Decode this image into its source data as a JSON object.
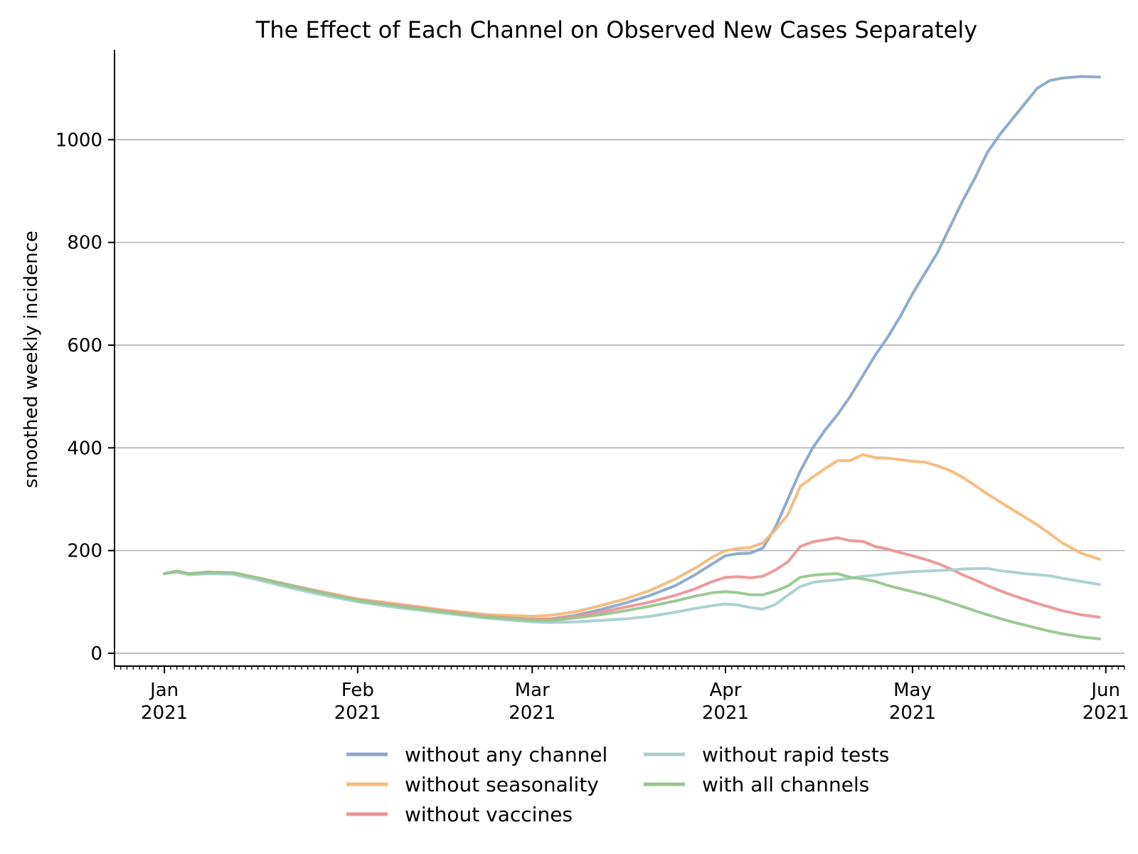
{
  "chart_data": {
    "type": "line",
    "title": "The Effect of Each Channel on Observed New Cases Separately",
    "xlabel": "",
    "ylabel": "smoothed weekly incidence",
    "ylim": [
      -25,
      1175
    ],
    "xlim": [
      "2020-12-24",
      "2021-06-04"
    ],
    "grid": "y-major",
    "legend": "below the chart, two columns",
    "x_ticks": [
      {
        "date": "2021-01-01",
        "month": "Jan",
        "year": "2021"
      },
      {
        "date": "2021-02-01",
        "month": "Feb",
        "year": "2021"
      },
      {
        "date": "2021-03-01",
        "month": "Mar",
        "year": "2021"
      },
      {
        "date": "2021-04-01",
        "month": "Apr",
        "year": "2021"
      },
      {
        "date": "2021-05-01",
        "month": "May",
        "year": "2021"
      },
      {
        "date": "2021-06-01",
        "month": "Jun",
        "year": "2021"
      }
    ],
    "y_ticks": [
      0,
      200,
      400,
      600,
      800,
      1000
    ],
    "series": [
      {
        "name": "without any channel",
        "color": "#8aa6c9",
        "points": [
          [
            "2021-01-01",
            155
          ],
          [
            "2021-01-03",
            160
          ],
          [
            "2021-01-05",
            153
          ],
          [
            "2021-01-08",
            157
          ],
          [
            "2021-01-12",
            155
          ],
          [
            "2021-01-16",
            145
          ],
          [
            "2021-01-20",
            133
          ],
          [
            "2021-01-25",
            120
          ],
          [
            "2021-02-01",
            104
          ],
          [
            "2021-02-08",
            92
          ],
          [
            "2021-02-15",
            81
          ],
          [
            "2021-02-22",
            71
          ],
          [
            "2021-03-01",
            66
          ],
          [
            "2021-03-04",
            67
          ],
          [
            "2021-03-08",
            74
          ],
          [
            "2021-03-12",
            85
          ],
          [
            "2021-03-16",
            98
          ],
          [
            "2021-03-20",
            113
          ],
          [
            "2021-03-24",
            132
          ],
          [
            "2021-03-27",
            152
          ],
          [
            "2021-03-30",
            175
          ],
          [
            "2021-04-01",
            190
          ],
          [
            "2021-04-03",
            194
          ],
          [
            "2021-04-05",
            195
          ],
          [
            "2021-04-07",
            205
          ],
          [
            "2021-04-09",
            245
          ],
          [
            "2021-04-11",
            300
          ],
          [
            "2021-04-13",
            355
          ],
          [
            "2021-04-15",
            400
          ],
          [
            "2021-04-17",
            435
          ],
          [
            "2021-04-19",
            465
          ],
          [
            "2021-04-21",
            500
          ],
          [
            "2021-04-23",
            540
          ],
          [
            "2021-04-25",
            580
          ],
          [
            "2021-04-27",
            615
          ],
          [
            "2021-04-29",
            655
          ],
          [
            "2021-05-01",
            700
          ],
          [
            "2021-05-03",
            740
          ],
          [
            "2021-05-05",
            780
          ],
          [
            "2021-05-07",
            830
          ],
          [
            "2021-05-09",
            880
          ],
          [
            "2021-05-11",
            925
          ],
          [
            "2021-05-13",
            975
          ],
          [
            "2021-05-15",
            1010
          ],
          [
            "2021-05-17",
            1040
          ],
          [
            "2021-05-19",
            1070
          ],
          [
            "2021-05-21",
            1100
          ],
          [
            "2021-05-23",
            1115
          ],
          [
            "2021-05-25",
            1120
          ],
          [
            "2021-05-28",
            1123
          ],
          [
            "2021-05-31",
            1122
          ]
        ]
      },
      {
        "name": "without seasonality",
        "color": "#f5b97a",
        "points": [
          [
            "2021-01-01",
            155
          ],
          [
            "2021-01-03",
            160
          ],
          [
            "2021-01-05",
            155
          ],
          [
            "2021-01-08",
            158
          ],
          [
            "2021-01-12",
            157
          ],
          [
            "2021-01-16",
            147
          ],
          [
            "2021-01-20",
            136
          ],
          [
            "2021-01-25",
            123
          ],
          [
            "2021-02-01",
            106
          ],
          [
            "2021-02-08",
            95
          ],
          [
            "2021-02-15",
            84
          ],
          [
            "2021-02-22",
            75
          ],
          [
            "2021-03-01",
            72
          ],
          [
            "2021-03-04",
            74
          ],
          [
            "2021-03-08",
            81
          ],
          [
            "2021-03-12",
            93
          ],
          [
            "2021-03-16",
            106
          ],
          [
            "2021-03-20",
            123
          ],
          [
            "2021-03-24",
            145
          ],
          [
            "2021-03-27",
            165
          ],
          [
            "2021-03-30",
            188
          ],
          [
            "2021-04-01",
            200
          ],
          [
            "2021-04-03",
            204
          ],
          [
            "2021-04-05",
            206
          ],
          [
            "2021-04-07",
            215
          ],
          [
            "2021-04-09",
            240
          ],
          [
            "2021-04-11",
            270
          ],
          [
            "2021-04-13",
            325
          ],
          [
            "2021-04-15",
            343
          ],
          [
            "2021-04-17",
            360
          ],
          [
            "2021-04-19",
            375
          ],
          [
            "2021-04-21",
            375
          ],
          [
            "2021-04-23",
            387
          ],
          [
            "2021-04-25",
            381
          ],
          [
            "2021-04-27",
            380
          ],
          [
            "2021-04-29",
            377
          ],
          [
            "2021-05-01",
            374
          ],
          [
            "2021-05-03",
            372
          ],
          [
            "2021-05-05",
            365
          ],
          [
            "2021-05-07",
            356
          ],
          [
            "2021-05-09",
            343
          ],
          [
            "2021-05-11",
            327
          ],
          [
            "2021-05-13",
            310
          ],
          [
            "2021-05-15",
            295
          ],
          [
            "2021-05-17",
            280
          ],
          [
            "2021-05-19",
            265
          ],
          [
            "2021-05-21",
            250
          ],
          [
            "2021-05-23",
            233
          ],
          [
            "2021-05-25",
            215
          ],
          [
            "2021-05-28",
            195
          ],
          [
            "2021-05-31",
            183
          ]
        ]
      },
      {
        "name": "without vaccines",
        "color": "#eb9598",
        "points": [
          [
            "2021-01-01",
            155
          ],
          [
            "2021-01-03",
            160
          ],
          [
            "2021-01-05",
            155
          ],
          [
            "2021-01-08",
            158
          ],
          [
            "2021-01-12",
            157
          ],
          [
            "2021-01-16",
            147
          ],
          [
            "2021-01-20",
            136
          ],
          [
            "2021-01-25",
            122
          ],
          [
            "2021-02-01",
            104
          ],
          [
            "2021-02-08",
            93
          ],
          [
            "2021-02-15",
            82
          ],
          [
            "2021-02-22",
            72
          ],
          [
            "2021-03-01",
            66
          ],
          [
            "2021-03-04",
            67
          ],
          [
            "2021-03-08",
            72
          ],
          [
            "2021-03-12",
            80
          ],
          [
            "2021-03-16",
            90
          ],
          [
            "2021-03-20",
            100
          ],
          [
            "2021-03-24",
            113
          ],
          [
            "2021-03-27",
            125
          ],
          [
            "2021-03-30",
            140
          ],
          [
            "2021-04-01",
            148
          ],
          [
            "2021-04-03",
            149
          ],
          [
            "2021-04-05",
            147
          ],
          [
            "2021-04-07",
            150
          ],
          [
            "2021-04-09",
            162
          ],
          [
            "2021-04-11",
            178
          ],
          [
            "2021-04-13",
            208
          ],
          [
            "2021-04-15",
            217
          ],
          [
            "2021-04-17",
            221
          ],
          [
            "2021-04-19",
            225
          ],
          [
            "2021-04-21",
            219
          ],
          [
            "2021-04-23",
            218
          ],
          [
            "2021-04-25",
            208
          ],
          [
            "2021-04-27",
            203
          ],
          [
            "2021-04-29",
            196
          ],
          [
            "2021-05-01",
            190
          ],
          [
            "2021-05-03",
            183
          ],
          [
            "2021-05-05",
            175
          ],
          [
            "2021-05-07",
            165
          ],
          [
            "2021-05-09",
            153
          ],
          [
            "2021-05-11",
            143
          ],
          [
            "2021-05-13",
            132
          ],
          [
            "2021-05-15",
            122
          ],
          [
            "2021-05-17",
            113
          ],
          [
            "2021-05-19",
            105
          ],
          [
            "2021-05-21",
            97
          ],
          [
            "2021-05-23",
            90
          ],
          [
            "2021-05-25",
            83
          ],
          [
            "2021-05-28",
            75
          ],
          [
            "2021-05-31",
            70
          ]
        ]
      },
      {
        "name": "without rapid tests",
        "color": "#a8d0cc",
        "points": [
          [
            "2021-01-01",
            155
          ],
          [
            "2021-01-03",
            158
          ],
          [
            "2021-01-05",
            153
          ],
          [
            "2021-01-08",
            155
          ],
          [
            "2021-01-12",
            154
          ],
          [
            "2021-01-16",
            143
          ],
          [
            "2021-01-20",
            131
          ],
          [
            "2021-01-25",
            117
          ],
          [
            "2021-02-01",
            100
          ],
          [
            "2021-02-08",
            88
          ],
          [
            "2021-02-15",
            78
          ],
          [
            "2021-02-22",
            68
          ],
          [
            "2021-03-01",
            61
          ],
          [
            "2021-03-04",
            60
          ],
          [
            "2021-03-08",
            61
          ],
          [
            "2021-03-12",
            64
          ],
          [
            "2021-03-16",
            67
          ],
          [
            "2021-03-20",
            72
          ],
          [
            "2021-03-24",
            80
          ],
          [
            "2021-03-27",
            87
          ],
          [
            "2021-03-30",
            93
          ],
          [
            "2021-04-01",
            96
          ],
          [
            "2021-04-03",
            94
          ],
          [
            "2021-04-05",
            89
          ],
          [
            "2021-04-07",
            86
          ],
          [
            "2021-04-09",
            95
          ],
          [
            "2021-04-11",
            113
          ],
          [
            "2021-04-13",
            130
          ],
          [
            "2021-04-15",
            138
          ],
          [
            "2021-04-17",
            141
          ],
          [
            "2021-04-19",
            143
          ],
          [
            "2021-04-21",
            146
          ],
          [
            "2021-04-23",
            150
          ],
          [
            "2021-04-25",
            152
          ],
          [
            "2021-04-27",
            155
          ],
          [
            "2021-04-29",
            157
          ],
          [
            "2021-05-01",
            159
          ],
          [
            "2021-05-03",
            160
          ],
          [
            "2021-05-05",
            161
          ],
          [
            "2021-05-07",
            162
          ],
          [
            "2021-05-09",
            164
          ],
          [
            "2021-05-11",
            165
          ],
          [
            "2021-05-13",
            165
          ],
          [
            "2021-05-15",
            161
          ],
          [
            "2021-05-17",
            158
          ],
          [
            "2021-05-19",
            155
          ],
          [
            "2021-05-21",
            153
          ],
          [
            "2021-05-23",
            151
          ],
          [
            "2021-05-25",
            146
          ],
          [
            "2021-05-28",
            140
          ],
          [
            "2021-05-31",
            134
          ]
        ]
      },
      {
        "name": "with all channels",
        "color": "#97c68e",
        "points": [
          [
            "2021-01-01",
            155
          ],
          [
            "2021-01-03",
            160
          ],
          [
            "2021-01-05",
            155
          ],
          [
            "2021-01-08",
            158
          ],
          [
            "2021-01-12",
            157
          ],
          [
            "2021-01-16",
            147
          ],
          [
            "2021-01-20",
            135
          ],
          [
            "2021-01-25",
            121
          ],
          [
            "2021-02-01",
            103
          ],
          [
            "2021-02-08",
            91
          ],
          [
            "2021-02-15",
            80
          ],
          [
            "2021-02-22",
            70
          ],
          [
            "2021-03-01",
            64
          ],
          [
            "2021-03-04",
            64
          ],
          [
            "2021-03-08",
            69
          ],
          [
            "2021-03-12",
            75
          ],
          [
            "2021-03-16",
            83
          ],
          [
            "2021-03-20",
            92
          ],
          [
            "2021-03-24",
            102
          ],
          [
            "2021-03-27",
            111
          ],
          [
            "2021-03-30",
            118
          ],
          [
            "2021-04-01",
            120
          ],
          [
            "2021-04-03",
            118
          ],
          [
            "2021-04-05",
            114
          ],
          [
            "2021-04-07",
            114
          ],
          [
            "2021-04-09",
            121
          ],
          [
            "2021-04-11",
            131
          ],
          [
            "2021-04-13",
            148
          ],
          [
            "2021-04-15",
            152
          ],
          [
            "2021-04-17",
            154
          ],
          [
            "2021-04-19",
            155
          ],
          [
            "2021-04-21",
            148
          ],
          [
            "2021-04-23",
            145
          ],
          [
            "2021-04-25",
            140
          ],
          [
            "2021-04-27",
            132
          ],
          [
            "2021-04-29",
            126
          ],
          [
            "2021-05-01",
            120
          ],
          [
            "2021-05-03",
            114
          ],
          [
            "2021-05-05",
            107
          ],
          [
            "2021-05-07",
            99
          ],
          [
            "2021-05-09",
            91
          ],
          [
            "2021-05-11",
            83
          ],
          [
            "2021-05-13",
            75
          ],
          [
            "2021-05-15",
            68
          ],
          [
            "2021-05-17",
            61
          ],
          [
            "2021-05-19",
            55
          ],
          [
            "2021-05-21",
            49
          ],
          [
            "2021-05-23",
            43
          ],
          [
            "2021-05-25",
            38
          ],
          [
            "2021-05-28",
            32
          ],
          [
            "2021-05-31",
            28
          ]
        ]
      }
    ]
  }
}
